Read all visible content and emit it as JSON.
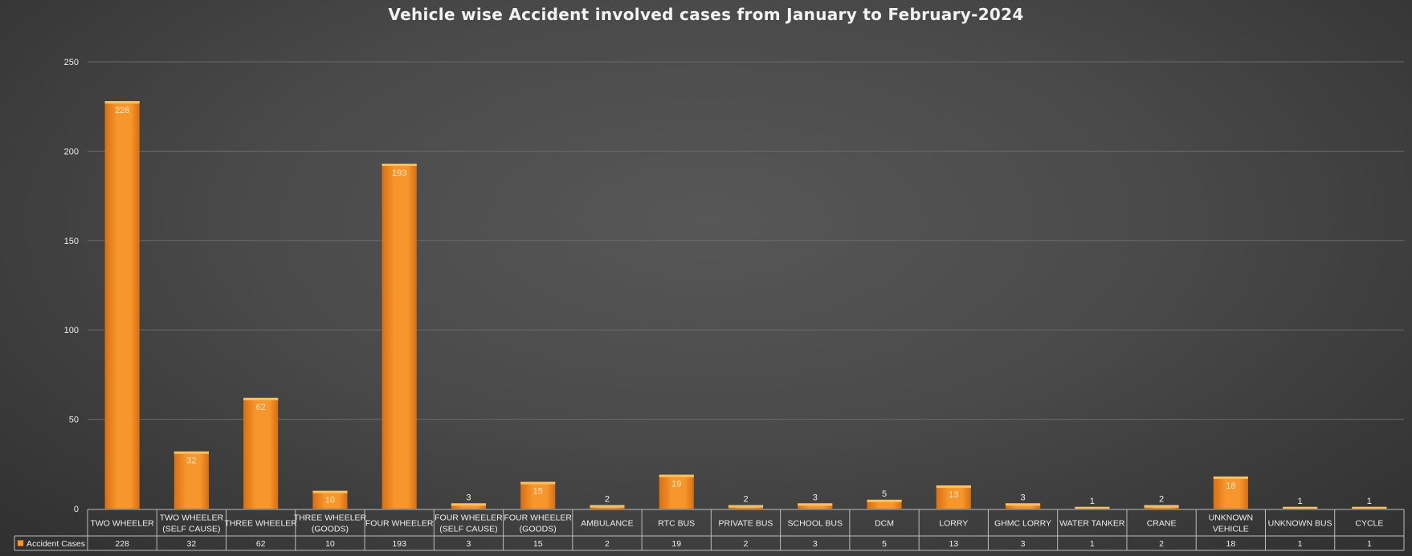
{
  "chart_data": {
    "type": "bar",
    "title": "Vehicle wise Accident involved cases from January to February-2024",
    "categories": [
      "TWO WHEELER",
      "TWO WHEELER (SELF CAUSE)",
      "THREE WHEELER",
      "THREE WHEELER (GOODS)",
      "FOUR WHEELER",
      "FOUR WHEELER (SELF CAUSE)",
      "FOUR WHEELER (GOODS)",
      "AMBULANCE",
      "RTC BUS",
      "PRIVATE BUS",
      "SCHOOL BUS",
      "DCM",
      "LORRY",
      "GHMC LORRY",
      "WATER TANKER",
      "CRANE",
      "UNKNOWN VEHICLE",
      "UNKNOWN BUS",
      "CYCLE"
    ],
    "series": [
      {
        "name": "Accident Cases",
        "values": [
          228,
          32,
          62,
          10,
          193,
          3,
          15,
          2,
          19,
          2,
          3,
          5,
          13,
          3,
          1,
          2,
          18,
          1,
          1
        ]
      }
    ],
    "ylim": [
      0,
      250
    ],
    "yticks": [
      "0",
      "50",
      "100",
      "150",
      "200",
      "250"
    ],
    "xlabel": "",
    "ylabel": "",
    "grid": true,
    "legend": "data-table",
    "colors": {
      "bar": "#f7962c",
      "bar_dark": "#d86f12",
      "bar_top": "#ffc060",
      "grid": "#6a6a6a",
      "text": "#eeeeee",
      "table_border": "#bdbdbd"
    }
  }
}
